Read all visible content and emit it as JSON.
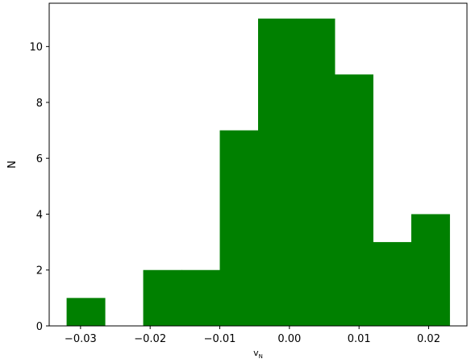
{
  "chart_data": {
    "type": "bar",
    "subtype": "histogram",
    "title": "",
    "xlabel": "v",
    "xlabel_subscript": "N",
    "ylabel": "N",
    "bin_edges": [
      -0.032,
      -0.0265,
      -0.021,
      -0.0155,
      -0.01,
      -0.0045,
      0.001,
      0.0065,
      0.012,
      0.0175,
      0.023
    ],
    "counts": [
      1,
      0,
      2,
      2,
      7,
      11,
      11,
      9,
      3,
      4
    ],
    "xlim": [
      -0.0345,
      0.0255
    ],
    "ylim": [
      0,
      11.55
    ],
    "xticks": [
      -0.03,
      -0.02,
      -0.01,
      0.0,
      0.01,
      0.02
    ],
    "xtick_labels": [
      "−0.03",
      "−0.02",
      "−0.01",
      "0.00",
      "0.01",
      "0.02"
    ],
    "yticks": [
      0,
      2,
      4,
      6,
      8,
      10
    ],
    "ytick_labels": [
      "0",
      "2",
      "4",
      "6",
      "8",
      "10"
    ],
    "bar_color": "#008000",
    "grid": false,
    "legend": "none"
  }
}
